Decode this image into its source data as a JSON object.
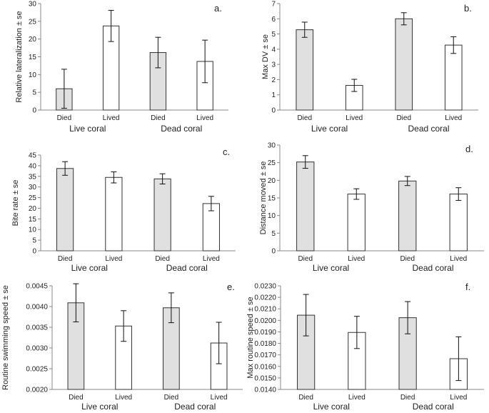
{
  "figure": {
    "style": {
      "died_fill": "#e0e0e0",
      "lived_fill": "#ffffff",
      "bar_stroke": "#333333",
      "axis_color": "#888888",
      "text_color": "#222222"
    }
  },
  "chart_data": [
    {
      "type": "bar",
      "panel_label": "a.",
      "categories": [
        "Died",
        "Lived",
        "Died",
        "Lived"
      ],
      "groups": [
        "Live coral",
        "Dead coral"
      ],
      "values": [
        6,
        23.7,
        16.2,
        13.7
      ],
      "errors": [
        5.5,
        4.4,
        4.3,
        6.0
      ],
      "ylabel": "Relative lateralization ± se",
      "ylim": [
        0,
        30
      ],
      "yticks": [
        "0",
        "5",
        "10",
        "15",
        "20",
        "25",
        "30"
      ]
    },
    {
      "type": "bar",
      "panel_label": "b.",
      "categories": [
        "Died",
        "Lived",
        "Died",
        "Lived"
      ],
      "groups": [
        "Live coral",
        "Dead coral"
      ],
      "values": [
        5.28,
        1.62,
        6.0,
        4.27
      ],
      "errors": [
        0.5,
        0.4,
        0.4,
        0.55
      ],
      "ylabel": "Max DV ± se",
      "ylim": [
        0,
        7
      ],
      "yticks": [
        "0",
        "1",
        "2",
        "3",
        "4",
        "5",
        "6",
        "7"
      ]
    },
    {
      "type": "bar",
      "panel_label": "c.",
      "categories": [
        "Died",
        "Lived",
        "Died",
        "Lived"
      ],
      "groups": [
        "Live coral",
        "Dead coral"
      ],
      "values": [
        38.7,
        34.5,
        33.8,
        22.2
      ],
      "errors": [
        3.2,
        2.6,
        2.4,
        3.4
      ],
      "ylabel": "Bite rate ± se",
      "ylim": [
        0,
        45
      ],
      "yticks": [
        "0",
        "5",
        "10",
        "15",
        "20",
        "25",
        "30",
        "35",
        "40",
        "45"
      ]
    },
    {
      "type": "bar",
      "panel_label": "d.",
      "categories": [
        "Died",
        "Lived",
        "Died",
        "Lived"
      ],
      "groups": [
        "Live coral",
        "Dead coral"
      ],
      "values": [
        25.2,
        16.1,
        19.8,
        16.1
      ],
      "errors": [
        1.8,
        1.5,
        1.3,
        1.8
      ],
      "ylabel": "Distance moved ± se",
      "ylim": [
        0,
        30
      ],
      "yticks": [
        "0",
        "5",
        "10",
        "15",
        "20",
        "25",
        "30"
      ]
    },
    {
      "type": "bar",
      "panel_label": "e.",
      "categories": [
        "Died",
        "Lived",
        "Died",
        "Lived"
      ],
      "groups": [
        "Live coral",
        "Dead coral"
      ],
      "values": [
        0.00409,
        0.00353,
        0.00397,
        0.00312
      ],
      "errors": [
        0.00046,
        0.00037,
        0.00036,
        0.0005
      ],
      "ylabel": "Routine swimming speed ± se",
      "ylim": [
        0.002,
        0.0045
      ],
      "yticks": [
        "0.0020",
        "0.0025",
        "0.0030",
        "0.0035",
        "0.0040",
        "0.0045"
      ]
    },
    {
      "type": "bar",
      "panel_label": "f.",
      "categories": [
        "Died",
        "Lived",
        "Died",
        "Lived"
      ],
      "groups": [
        "Live coral",
        "Dead coral"
      ],
      "values": [
        0.02045,
        0.01895,
        0.02023,
        0.01667
      ],
      "errors": [
        0.0018,
        0.0014,
        0.0014,
        0.0019
      ],
      "ylabel": "Max routine speed ± se",
      "ylim": [
        0.014,
        0.023
      ],
      "yticks": [
        "0.0140",
        "0.0150",
        "0.0160",
        "0.0170",
        "0.0180",
        "0.0190",
        "0.0200",
        "0.0210",
        "0.0220",
        "0.0230"
      ]
    }
  ]
}
